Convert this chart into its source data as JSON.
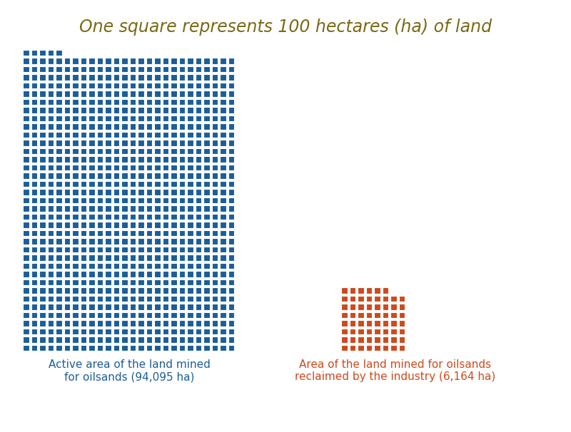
{
  "title": "One square represents 100 hectares (ha) of land",
  "title_color": "#7B6914",
  "blue_value": 94095,
  "orange_value": 6164,
  "ha_per_square": 100,
  "blue_color": "#1B5E99",
  "orange_color": "#CC4A1E",
  "blue_label": "Active area of the land mined\nfor oilsands (94,095 ha)",
  "orange_label": "Area of the land mined for oilsands\nreclaimed by the industry (6,164 ha)",
  "blue_label_color": "#1B5E99",
  "orange_label_color": "#CC4A1E",
  "blue_cols": 26,
  "orange_cols": 8,
  "bg_color": "#FFFFFF"
}
